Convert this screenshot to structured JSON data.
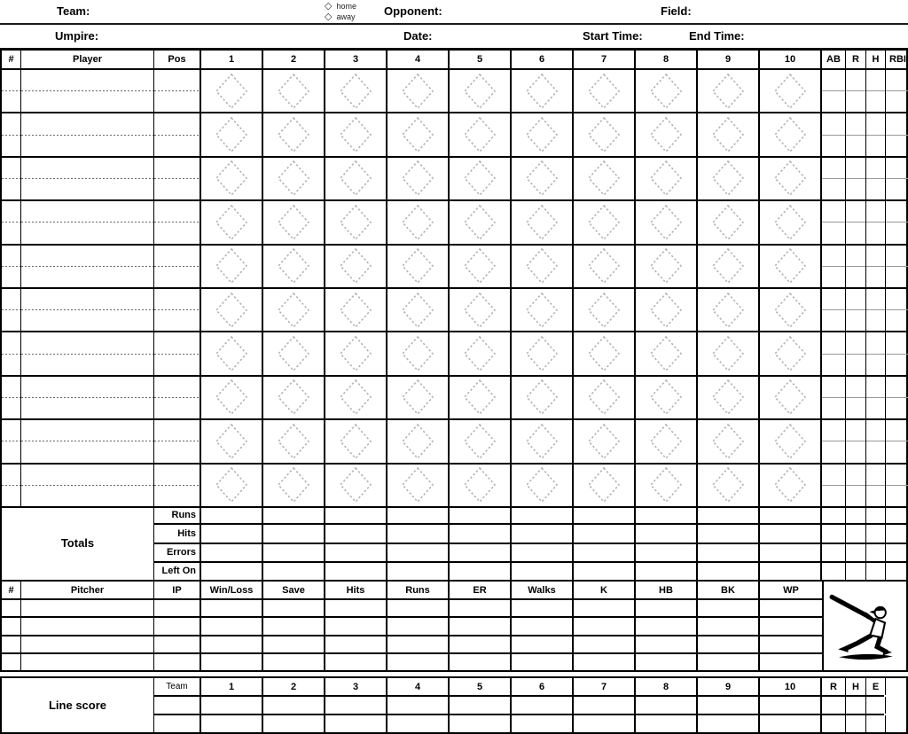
{
  "colors": {
    "ink": "#000000",
    "diamond_outline": "#b4b4b4",
    "sub_row_divider": "#999999"
  },
  "top_bar": {
    "team_label": "Team:",
    "home_label": "home",
    "away_label": "away",
    "checkbox_glyph": "◇",
    "opponent_label": "Opponent:",
    "field_label": "Field:",
    "umpire_label": "Umpire:",
    "date_label": "Date:",
    "start_time_label": "Start Time:",
    "end_time_label": "End Time:"
  },
  "batting": {
    "headers": [
      "#",
      "Player",
      "Pos"
    ],
    "innings": [
      "1",
      "2",
      "3",
      "4",
      "5",
      "6",
      "7",
      "8",
      "9",
      "10"
    ],
    "stats": [
      "AB",
      "R",
      "H",
      "RBI"
    ],
    "rows": 10
  },
  "totals": {
    "title": "Totals",
    "row_labels": [
      "Runs",
      "Hits",
      "Errors",
      "Left On"
    ]
  },
  "pitching": {
    "headers": [
      "#",
      "Pitcher",
      "IP",
      "Win/Loss",
      "Save",
      "Hits",
      "Runs",
      "ER",
      "Walks",
      "K",
      "HB",
      "BK",
      "WP"
    ],
    "rows": 4
  },
  "line_score": {
    "title": "Line score",
    "team_header": "Team",
    "innings": [
      "1",
      "2",
      "3",
      "4",
      "5",
      "6",
      "7",
      "8",
      "9",
      "10"
    ],
    "stats": [
      "R",
      "H",
      "E"
    ],
    "rows": 2
  },
  "icons": {
    "batter": "batter-swinging-icon",
    "scoring_diamond": "scoring-diamond-icon",
    "home_away_checkbox": "diamond-checkbox-icon"
  }
}
